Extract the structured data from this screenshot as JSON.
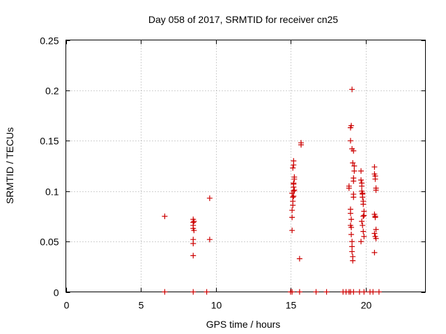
{
  "chart_data": {
    "type": "scatter",
    "title": "Day 058 of 2017, SRMTID for receiver cn25",
    "xlabel": "GPS time / hours",
    "ylabel": "SRMTID / TECUs",
    "xlim": [
      0,
      24
    ],
    "ylim": [
      0,
      0.25
    ],
    "x_ticks": [
      0,
      5,
      10,
      15,
      20
    ],
    "x_tick_labels": [
      "0",
      "5",
      "10",
      "15",
      "20"
    ],
    "y_ticks": [
      0,
      0.05,
      0.1,
      0.15,
      0.2,
      0.25
    ],
    "y_tick_labels": [
      "0",
      "0.05",
      "0.1",
      "0.15",
      "0.2",
      "0.25"
    ],
    "grid": true,
    "marker": "+",
    "color": "#cc0000",
    "series": [
      {
        "name": "SRMTID",
        "x": [
          6.6,
          8.5,
          8.5,
          8.5,
          8.5,
          8.55,
          8.55,
          8.5,
          8.5,
          8.5,
          9.6,
          9.6,
          15.1,
          15.1,
          15.1,
          15.15,
          15.15,
          15.2,
          15.2,
          15.2,
          15.2,
          15.25,
          15.25,
          15.15,
          15.2,
          15.2,
          15.2,
          15.25,
          15.1,
          15.15,
          15.7,
          15.7,
          15.6,
          18.9,
          18.9,
          19.0,
          19.0,
          19.0,
          19.05,
          19.05,
          19.1,
          19.1,
          19.1,
          19.15,
          19.15,
          19.2,
          19.2,
          19.2,
          19.25,
          19.25,
          19.2,
          19.1,
          19.0,
          19.0,
          19.05,
          19.1,
          19.15,
          19.2,
          19.05,
          19.7,
          19.7,
          19.75,
          19.75,
          19.8,
          19.8,
          19.85,
          19.85,
          19.9,
          19.9,
          19.75,
          19.8,
          19.85,
          19.9,
          19.7,
          19.75,
          19.8,
          19.85,
          20.6,
          20.6,
          20.65,
          20.65,
          20.7,
          20.7,
          20.6,
          20.65,
          20.7,
          20.6,
          20.65,
          20.7,
          20.6,
          20.65,
          6.6,
          8.5,
          9.4,
          15.0,
          15.1,
          15.6,
          16.7,
          17.4,
          18.5,
          18.7,
          18.9,
          19.0,
          19.2,
          19.6,
          19.9,
          20.3,
          20.5,
          20.9
        ],
        "y": [
          0.075,
          0.072,
          0.069,
          0.066,
          0.063,
          0.07,
          0.061,
          0.052,
          0.048,
          0.036,
          0.093,
          0.052,
          0.061,
          0.074,
          0.081,
          0.086,
          0.09,
          0.095,
          0.1,
          0.104,
          0.108,
          0.112,
          0.114,
          0.123,
          0.126,
          0.13,
          0.107,
          0.101,
          0.098,
          0.094,
          0.146,
          0.148,
          0.033,
          0.103,
          0.105,
          0.082,
          0.078,
          0.066,
          0.064,
          0.057,
          0.05,
          0.045,
          0.04,
          0.035,
          0.031,
          0.097,
          0.094,
          0.113,
          0.12,
          0.125,
          0.14,
          0.142,
          0.15,
          0.163,
          0.165,
          0.201,
          0.128,
          0.11,
          0.072,
          0.12,
          0.111,
          0.105,
          0.1,
          0.097,
          0.094,
          0.09,
          0.087,
          0.08,
          0.076,
          0.07,
          0.066,
          0.06,
          0.055,
          0.05,
          0.108,
          0.098,
          0.075,
          0.124,
          0.117,
          0.115,
          0.112,
          0.103,
          0.101,
          0.077,
          0.074,
          0.062,
          0.058,
          0.055,
          0.053,
          0.039,
          0.075,
          0.0,
          0.0,
          0.0,
          0.0,
          0.0,
          0.0,
          0.0,
          0.0,
          0.0,
          0.0,
          0.0,
          0.0,
          0.0,
          0.0,
          0.0,
          0.0,
          0.0,
          0.0
        ]
      }
    ]
  }
}
